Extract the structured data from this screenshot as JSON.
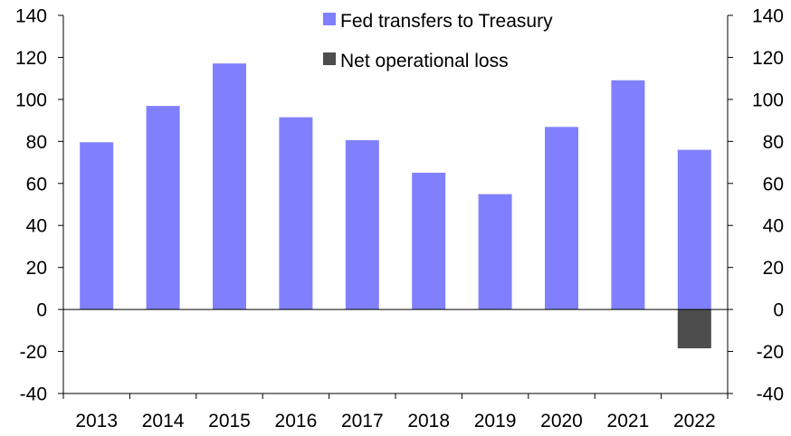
{
  "chart_data": {
    "type": "bar",
    "categories": [
      "2013",
      "2014",
      "2015",
      "2016",
      "2017",
      "2018",
      "2019",
      "2020",
      "2021",
      "2022"
    ],
    "series": [
      {
        "name": "Fed transfers to Treasury",
        "values": [
          79.6,
          96.9,
          117.1,
          91.5,
          80.6,
          65.1,
          54.9,
          86.9,
          109.1,
          76.0
        ],
        "color": "#8080ff"
      },
      {
        "name": "Net operational loss",
        "values": [
          0,
          0,
          0,
          0,
          0,
          0,
          0,
          0,
          0,
          -18.5
        ],
        "color": "#4d4d4d"
      }
    ],
    "ylim": [
      -40,
      140
    ],
    "yticks": [
      "-40",
      "-20",
      "0",
      "20",
      "40",
      "60",
      "80",
      "100",
      "120",
      "140"
    ],
    "secondary_yticks": [
      "-40",
      "-20",
      "0",
      "20",
      "40",
      "60",
      "80",
      "100",
      "120",
      "140"
    ],
    "legend_position": "top-center",
    "grid": false
  }
}
